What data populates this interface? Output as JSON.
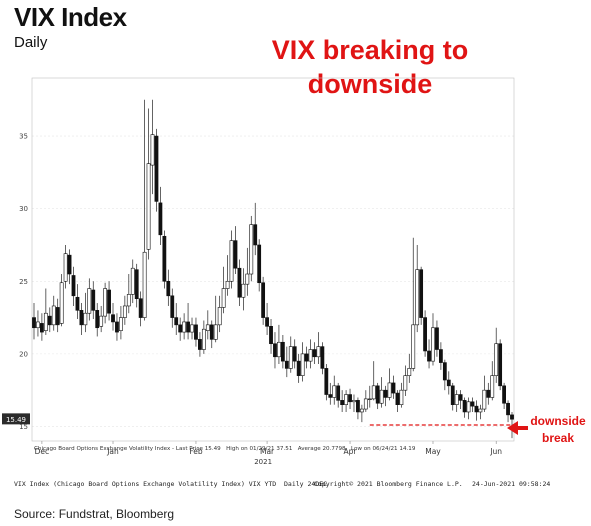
{
  "header": {
    "title": "VIX Index",
    "subtitle": "Daily",
    "headline_line1": "VIX breaking to",
    "headline_line2": "downside"
  },
  "annotation": {
    "line1": "downside",
    "line2": "break",
    "level": 15.1,
    "color": "#e01414"
  },
  "legend": {
    "series": "Chicago Board Options Exchange Volatility Index - Last Price 15.49",
    "high": "High on 01/29/21 37.51",
    "average": "Average 20.7798",
    "low": "Low on 06/24/21 14.19"
  },
  "footer": {
    "left": "VIX Index (Chicago Board Options Exchange Volatility Index) VIX YTD  Daily 24DEC",
    "middle": "Copyright© 2021 Bloomberg Finance L.P.",
    "right": "24-Jun-2021 09:58:24"
  },
  "source": "Source: Fundstrat, Bloomberg",
  "chart_data": {
    "type": "candlestick",
    "title": "VIX Index",
    "last_price_label": "15.49",
    "ylim": [
      14,
      39
    ],
    "y_ticks": [
      15,
      20,
      25,
      30,
      35
    ],
    "x_months": [
      "Dec",
      "Jan",
      "Feb",
      "Mar",
      "Apr",
      "May",
      "Jun"
    ],
    "x_year_label": "2021",
    "grid": true,
    "candles": [
      {
        "x": 0,
        "o": 22.5,
        "c": 21.8,
        "h": 23.5,
        "l": 21.0
      },
      {
        "x": 1,
        "o": 21.8,
        "c": 22.2,
        "h": 23.0,
        "l": 21.2
      },
      {
        "x": 2,
        "o": 22.1,
        "c": 21.5,
        "h": 22.8,
        "l": 20.9
      },
      {
        "x": 3,
        "o": 21.6,
        "c": 22.8,
        "h": 24.5,
        "l": 21.3
      },
      {
        "x": 4,
        "o": 22.6,
        "c": 22.0,
        "h": 23.2,
        "l": 21.5
      },
      {
        "x": 5,
        "o": 22.0,
        "c": 23.3,
        "h": 24.0,
        "l": 21.6
      },
      {
        "x": 6,
        "o": 23.2,
        "c": 22.0,
        "h": 23.8,
        "l": 21.5
      },
      {
        "x": 7,
        "o": 22.1,
        "c": 24.9,
        "h": 25.5,
        "l": 21.9
      },
      {
        "x": 8,
        "o": 25.0,
        "c": 26.9,
        "h": 27.5,
        "l": 24.5
      },
      {
        "x": 9,
        "o": 26.8,
        "c": 25.5,
        "h": 27.2,
        "l": 24.8
      },
      {
        "x": 10,
        "o": 25.4,
        "c": 24.0,
        "h": 26.0,
        "l": 23.3
      },
      {
        "x": 11,
        "o": 23.9,
        "c": 23.0,
        "h": 24.8,
        "l": 22.4
      },
      {
        "x": 12,
        "o": 23.0,
        "c": 22.0,
        "h": 23.5,
        "l": 21.3
      },
      {
        "x": 13,
        "o": 22.0,
        "c": 22.8,
        "h": 24.2,
        "l": 21.5
      },
      {
        "x": 14,
        "o": 22.8,
        "c": 24.5,
        "h": 25.2,
        "l": 22.3
      },
      {
        "x": 15,
        "o": 24.4,
        "c": 23.0,
        "h": 25.0,
        "l": 22.4
      },
      {
        "x": 16,
        "o": 23.0,
        "c": 21.8,
        "h": 23.5,
        "l": 21.2
      },
      {
        "x": 17,
        "o": 21.9,
        "c": 22.6,
        "h": 23.3,
        "l": 21.5
      },
      {
        "x": 18,
        "o": 22.6,
        "c": 24.5,
        "h": 24.9,
        "l": 22.1
      },
      {
        "x": 19,
        "o": 24.4,
        "c": 22.8,
        "h": 25.0,
        "l": 22.3
      },
      {
        "x": 20,
        "o": 22.7,
        "c": 22.2,
        "h": 23.5,
        "l": 21.6
      },
      {
        "x": 21,
        "o": 22.2,
        "c": 21.5,
        "h": 22.8,
        "l": 20.9
      },
      {
        "x": 22,
        "o": 21.6,
        "c": 22.5,
        "h": 23.3,
        "l": 21.0
      },
      {
        "x": 23,
        "o": 22.5,
        "c": 23.3,
        "h": 24.0,
        "l": 22.0
      },
      {
        "x": 24,
        "o": 23.3,
        "c": 24.1,
        "h": 25.5,
        "l": 22.8
      },
      {
        "x": 25,
        "o": 24.1,
        "c": 25.9,
        "h": 26.5,
        "l": 23.5
      },
      {
        "x": 26,
        "o": 25.8,
        "c": 23.8,
        "h": 26.2,
        "l": 23.2
      },
      {
        "x": 27,
        "o": 23.8,
        "c": 22.5,
        "h": 24.3,
        "l": 21.9
      },
      {
        "x": 28,
        "o": 22.5,
        "c": 27.0,
        "h": 37.5,
        "l": 22.3
      },
      {
        "x": 29,
        "o": 27.2,
        "c": 33.1,
        "h": 36.9,
        "l": 26.5
      },
      {
        "x": 30,
        "o": 33.0,
        "c": 35.1,
        "h": 37.5,
        "l": 31.0
      },
      {
        "x": 31,
        "o": 35.0,
        "c": 30.5,
        "h": 35.5,
        "l": 29.8
      },
      {
        "x": 32,
        "o": 30.4,
        "c": 28.2,
        "h": 31.5,
        "l": 27.5
      },
      {
        "x": 33,
        "o": 28.1,
        "c": 25.0,
        "h": 28.5,
        "l": 24.5
      },
      {
        "x": 34,
        "o": 25.0,
        "c": 24.0,
        "h": 25.8,
        "l": 23.3
      },
      {
        "x": 35,
        "o": 24.0,
        "c": 22.5,
        "h": 24.5,
        "l": 21.8
      },
      {
        "x": 36,
        "o": 22.5,
        "c": 22.0,
        "h": 23.5,
        "l": 21.3
      },
      {
        "x": 37,
        "o": 22.0,
        "c": 21.5,
        "h": 22.5,
        "l": 20.9
      },
      {
        "x": 38,
        "o": 21.5,
        "c": 22.2,
        "h": 22.8,
        "l": 21.0
      },
      {
        "x": 39,
        "o": 22.2,
        "c": 21.5,
        "h": 23.5,
        "l": 21.0
      },
      {
        "x": 40,
        "o": 21.5,
        "c": 22.0,
        "h": 22.5,
        "l": 21.0
      },
      {
        "x": 41,
        "o": 22.0,
        "c": 21.0,
        "h": 22.5,
        "l": 20.5
      },
      {
        "x": 42,
        "o": 21.0,
        "c": 20.3,
        "h": 21.5,
        "l": 19.8
      },
      {
        "x": 43,
        "o": 20.3,
        "c": 21.7,
        "h": 22.3,
        "l": 20.0
      },
      {
        "x": 44,
        "o": 21.6,
        "c": 22.0,
        "h": 23.0,
        "l": 21.0
      },
      {
        "x": 45,
        "o": 22.0,
        "c": 21.0,
        "h": 22.3,
        "l": 20.4
      },
      {
        "x": 46,
        "o": 21.0,
        "c": 22.0,
        "h": 24.0,
        "l": 20.8
      },
      {
        "x": 47,
        "o": 22.0,
        "c": 23.2,
        "h": 24.0,
        "l": 21.5
      },
      {
        "x": 48,
        "o": 23.2,
        "c": 24.5,
        "h": 26.0,
        "l": 22.8
      },
      {
        "x": 49,
        "o": 24.5,
        "c": 25.0,
        "h": 26.8,
        "l": 24.0
      },
      {
        "x": 50,
        "o": 25.0,
        "c": 27.8,
        "h": 28.5,
        "l": 24.5
      },
      {
        "x": 51,
        "o": 27.8,
        "c": 25.9,
        "h": 28.8,
        "l": 25.5
      },
      {
        "x": 52,
        "o": 25.9,
        "c": 23.9,
        "h": 26.5,
        "l": 23.3
      },
      {
        "x": 53,
        "o": 23.9,
        "c": 24.8,
        "h": 25.9,
        "l": 23.0
      },
      {
        "x": 54,
        "o": 24.8,
        "c": 25.5,
        "h": 27.3,
        "l": 24.0
      },
      {
        "x": 55,
        "o": 25.5,
        "c": 28.9,
        "h": 29.5,
        "l": 25.0
      },
      {
        "x": 56,
        "o": 28.9,
        "c": 27.5,
        "h": 30.4,
        "l": 26.8
      },
      {
        "x": 57,
        "o": 27.5,
        "c": 24.9,
        "h": 27.9,
        "l": 24.3
      },
      {
        "x": 58,
        "o": 24.9,
        "c": 22.5,
        "h": 25.3,
        "l": 22.0
      },
      {
        "x": 59,
        "o": 22.5,
        "c": 21.9,
        "h": 23.5,
        "l": 21.3
      },
      {
        "x": 60,
        "o": 21.9,
        "c": 20.7,
        "h": 22.4,
        "l": 20.0
      },
      {
        "x": 61,
        "o": 20.7,
        "c": 19.8,
        "h": 21.5,
        "l": 19.0
      },
      {
        "x": 62,
        "o": 19.8,
        "c": 20.8,
        "h": 22.0,
        "l": 19.3
      },
      {
        "x": 63,
        "o": 20.8,
        "c": 19.5,
        "h": 21.3,
        "l": 19.0
      },
      {
        "x": 64,
        "o": 19.5,
        "c": 19.0,
        "h": 20.5,
        "l": 18.4
      },
      {
        "x": 65,
        "o": 19.0,
        "c": 20.5,
        "h": 21.2,
        "l": 18.7
      },
      {
        "x": 66,
        "o": 20.5,
        "c": 19.5,
        "h": 21.0,
        "l": 19.0
      },
      {
        "x": 67,
        "o": 19.5,
        "c": 18.5,
        "h": 20.0,
        "l": 18.0
      },
      {
        "x": 68,
        "o": 18.5,
        "c": 20.0,
        "h": 20.8,
        "l": 18.1
      },
      {
        "x": 69,
        "o": 20.0,
        "c": 19.5,
        "h": 20.5,
        "l": 19.0
      },
      {
        "x": 70,
        "o": 19.5,
        "c": 20.3,
        "h": 21.0,
        "l": 19.0
      },
      {
        "x": 71,
        "o": 20.3,
        "c": 19.8,
        "h": 20.8,
        "l": 19.3
      },
      {
        "x": 72,
        "o": 19.8,
        "c": 20.5,
        "h": 21.5,
        "l": 19.3
      },
      {
        "x": 73,
        "o": 20.5,
        "c": 19.0,
        "h": 20.8,
        "l": 18.6
      },
      {
        "x": 74,
        "o": 19.0,
        "c": 17.2,
        "h": 19.3,
        "l": 16.8
      },
      {
        "x": 75,
        "o": 17.2,
        "c": 17.0,
        "h": 18.0,
        "l": 16.5
      },
      {
        "x": 76,
        "o": 17.0,
        "c": 17.8,
        "h": 18.5,
        "l": 16.5
      },
      {
        "x": 77,
        "o": 17.8,
        "c": 16.8,
        "h": 18.0,
        "l": 16.3
      },
      {
        "x": 78,
        "o": 16.8,
        "c": 16.5,
        "h": 17.5,
        "l": 16.0
      },
      {
        "x": 79,
        "o": 16.5,
        "c": 17.2,
        "h": 17.5,
        "l": 16.0
      },
      {
        "x": 80,
        "o": 17.2,
        "c": 16.7,
        "h": 17.6,
        "l": 16.2
      },
      {
        "x": 81,
        "o": 16.7,
        "c": 16.8,
        "h": 17.2,
        "l": 16.0
      },
      {
        "x": 82,
        "o": 16.8,
        "c": 16.0,
        "h": 17.0,
        "l": 15.5
      },
      {
        "x": 83,
        "o": 16.0,
        "c": 16.2,
        "h": 16.5,
        "l": 15.3
      },
      {
        "x": 84,
        "o": 16.2,
        "c": 16.9,
        "h": 17.5,
        "l": 16.0
      },
      {
        "x": 85,
        "o": 16.9,
        "c": 16.9,
        "h": 17.8,
        "l": 16.3
      },
      {
        "x": 86,
        "o": 16.9,
        "c": 17.8,
        "h": 19.5,
        "l": 16.8
      },
      {
        "x": 87,
        "o": 17.8,
        "c": 16.6,
        "h": 18.0,
        "l": 16.2
      },
      {
        "x": 88,
        "o": 16.6,
        "c": 17.5,
        "h": 18.4,
        "l": 16.3
      },
      {
        "x": 89,
        "o": 17.5,
        "c": 17.0,
        "h": 17.8,
        "l": 16.4
      },
      {
        "x": 90,
        "o": 17.0,
        "c": 18.0,
        "h": 19.0,
        "l": 16.8
      },
      {
        "x": 91,
        "o": 18.0,
        "c": 17.3,
        "h": 18.5,
        "l": 16.9
      },
      {
        "x": 92,
        "o": 17.3,
        "c": 16.5,
        "h": 17.5,
        "l": 16.0
      },
      {
        "x": 93,
        "o": 16.5,
        "c": 17.5,
        "h": 18.0,
        "l": 16.3
      },
      {
        "x": 94,
        "o": 17.5,
        "c": 18.5,
        "h": 19.2,
        "l": 17.1
      },
      {
        "x": 95,
        "o": 18.5,
        "c": 19.0,
        "h": 20.0,
        "l": 18.0
      },
      {
        "x": 96,
        "o": 19.0,
        "c": 22.0,
        "h": 28.0,
        "l": 18.8
      },
      {
        "x": 97,
        "o": 22.0,
        "c": 25.8,
        "h": 27.5,
        "l": 21.5
      },
      {
        "x": 98,
        "o": 25.8,
        "c": 22.5,
        "h": 26.0,
        "l": 22.0
      },
      {
        "x": 99,
        "o": 22.5,
        "c": 20.2,
        "h": 23.0,
        "l": 19.8
      },
      {
        "x": 100,
        "o": 20.2,
        "c": 19.5,
        "h": 21.0,
        "l": 19.0
      },
      {
        "x": 101,
        "o": 19.5,
        "c": 21.8,
        "h": 22.8,
        "l": 19.2
      },
      {
        "x": 102,
        "o": 21.8,
        "c": 20.3,
        "h": 22.3,
        "l": 19.8
      },
      {
        "x": 103,
        "o": 20.3,
        "c": 19.4,
        "h": 20.8,
        "l": 18.9
      },
      {
        "x": 104,
        "o": 19.4,
        "c": 18.2,
        "h": 19.6,
        "l": 17.5
      },
      {
        "x": 105,
        "o": 18.2,
        "c": 17.8,
        "h": 18.8,
        "l": 17.2
      },
      {
        "x": 106,
        "o": 17.8,
        "c": 16.5,
        "h": 18.0,
        "l": 16.1
      },
      {
        "x": 107,
        "o": 16.5,
        "c": 17.2,
        "h": 17.5,
        "l": 16.0
      },
      {
        "x": 108,
        "o": 17.2,
        "c": 16.8,
        "h": 17.5,
        "l": 16.2
      },
      {
        "x": 109,
        "o": 16.8,
        "c": 16.0,
        "h": 17.0,
        "l": 15.6
      },
      {
        "x": 110,
        "o": 16.0,
        "c": 16.7,
        "h": 17.0,
        "l": 15.5
      },
      {
        "x": 111,
        "o": 16.7,
        "c": 16.4,
        "h": 17.0,
        "l": 16.0
      },
      {
        "x": 112,
        "o": 16.4,
        "c": 16.0,
        "h": 16.8,
        "l": 15.4
      },
      {
        "x": 113,
        "o": 16.0,
        "c": 16.2,
        "h": 16.5,
        "l": 15.5
      },
      {
        "x": 114,
        "o": 16.2,
        "c": 17.5,
        "h": 18.5,
        "l": 16.0
      },
      {
        "x": 115,
        "o": 17.5,
        "c": 17.0,
        "h": 18.0,
        "l": 16.5
      },
      {
        "x": 116,
        "o": 17.0,
        "c": 18.5,
        "h": 19.5,
        "l": 16.8
      },
      {
        "x": 117,
        "o": 18.5,
        "c": 20.7,
        "h": 21.8,
        "l": 18.0
      },
      {
        "x": 118,
        "o": 20.7,
        "c": 17.8,
        "h": 21.0,
        "l": 17.5
      },
      {
        "x": 119,
        "o": 17.8,
        "c": 16.6,
        "h": 18.0,
        "l": 16.2
      },
      {
        "x": 120,
        "o": 16.6,
        "c": 15.8,
        "h": 16.8,
        "l": 15.3
      },
      {
        "x": 121,
        "o": 15.8,
        "c": 15.5,
        "h": 16.0,
        "l": 14.2
      }
    ]
  }
}
